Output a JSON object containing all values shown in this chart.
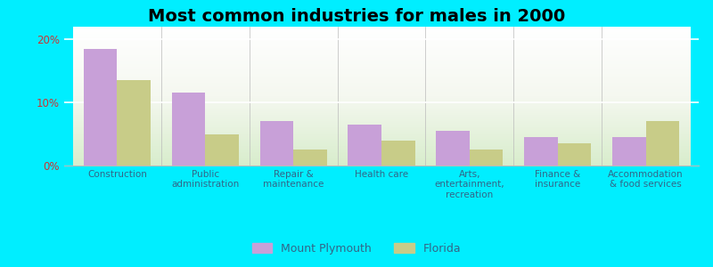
{
  "title": "Most common industries for males in 2000",
  "categories": [
    "Construction",
    "Public\nadministration",
    "Repair &\nmaintenance",
    "Health care",
    "Arts,\nentertainment,\nrecreation",
    "Finance &\ninsurance",
    "Accommodation\n& food services"
  ],
  "mount_plymouth": [
    18.5,
    11.5,
    7.0,
    6.5,
    5.5,
    4.5,
    4.5
  ],
  "florida": [
    13.5,
    5.0,
    2.5,
    4.0,
    2.5,
    3.5,
    7.0
  ],
  "color_mount": "#c8a0d8",
  "color_florida": "#c8cc88",
  "background_outer": "#00eeff",
  "ylim": [
    0,
    22
  ],
  "yticks": [
    0,
    10,
    20
  ],
  "ytick_labels": [
    "0%",
    "10%",
    "20%"
  ],
  "legend_labels": [
    "Mount Plymouth",
    "Florida"
  ],
  "bar_width": 0.38,
  "title_fontsize": 14
}
